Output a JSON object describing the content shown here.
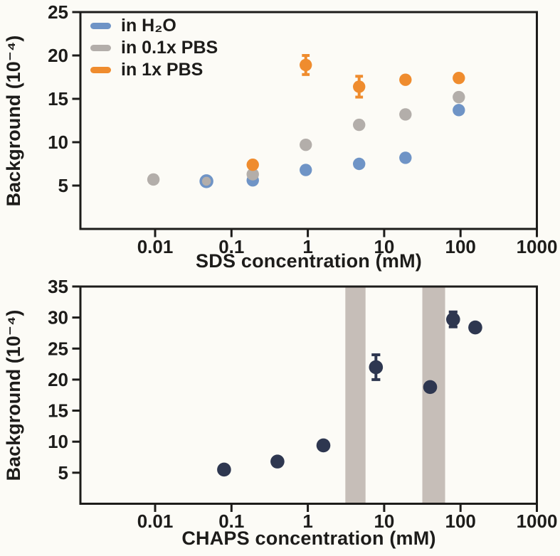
{
  "figure": {
    "background_color": "#fcfbf6",
    "text_color": "#1d1c1a",
    "spine_color": "#1d1c1a"
  },
  "chart_data": [
    {
      "type": "scatter",
      "title": "",
      "xlabel": "SDS concentration (mM)",
      "ylabel": "Background (10⁻⁴)",
      "xscale": "log",
      "xlim": [
        0.001,
        1000
      ],
      "ylim": [
        0,
        25
      ],
      "xticks": [
        0.01,
        0.1,
        1,
        10,
        100,
        1000
      ],
      "xtick_labels": [
        "0.01",
        "0.1",
        "1",
        "10",
        "100",
        "1000"
      ],
      "yticks": [
        5,
        10,
        15,
        20,
        25
      ],
      "grid": false,
      "legend_position": "upper-left",
      "series": [
        {
          "name": "in H₂O",
          "color": "#6f94c6",
          "points": [
            {
              "x": 0.047,
              "y": 5.5,
              "marker_scale": 1.12
            },
            {
              "x": 0.19,
              "y": 5.6
            },
            {
              "x": 0.94,
              "y": 6.8
            },
            {
              "x": 4.7,
              "y": 7.5
            },
            {
              "x": 19,
              "y": 8.2
            },
            {
              "x": 95,
              "y": 13.7
            }
          ]
        },
        {
          "name": "in 0.1x PBS",
          "color": "#b3aeaa",
          "points": [
            {
              "x": 0.0095,
              "y": 5.7
            },
            {
              "x": 0.047,
              "y": 5.5,
              "marker_scale": 0.72
            },
            {
              "x": 0.19,
              "y": 6.3
            },
            {
              "x": 0.94,
              "y": 9.7
            },
            {
              "x": 4.7,
              "y": 12.0
            },
            {
              "x": 19,
              "y": 13.2
            },
            {
              "x": 95,
              "y": 15.2
            }
          ]
        },
        {
          "name": "in 1x PBS",
          "color": "#ef8c2e",
          "points": [
            {
              "x": 0.19,
              "y": 7.4
            },
            {
              "x": 0.94,
              "y": 18.9,
              "err": 1.1
            },
            {
              "x": 4.7,
              "y": 16.4,
              "err": 1.2
            },
            {
              "x": 19,
              "y": 17.2
            },
            {
              "x": 95,
              "y": 17.4
            }
          ]
        }
      ]
    },
    {
      "type": "scatter",
      "title": "",
      "xlabel": "CHAPS concentration (mM)",
      "ylabel": "Background (10⁻⁴)",
      "xscale": "log",
      "xlim": [
        0.001,
        1000
      ],
      "ylim": [
        0,
        35
      ],
      "xticks": [
        0.01,
        0.1,
        1,
        10,
        100,
        1000
      ],
      "xtick_labels": [
        "0.01",
        "0.1",
        "1",
        "10",
        "100",
        "1000"
      ],
      "yticks": [
        5,
        10,
        15,
        20,
        25,
        30,
        35
      ],
      "grid": false,
      "bands": [
        {
          "from": 3.1,
          "to": 5.7,
          "color": "#c6beb8"
        },
        {
          "from": 31.6,
          "to": 62.8,
          "color": "#c6beb8"
        }
      ],
      "series": [
        {
          "name": "CHAPS",
          "color": "#2e3750",
          "points": [
            {
              "x": 0.08,
              "y": 5.5
            },
            {
              "x": 0.4,
              "y": 6.8
            },
            {
              "x": 1.6,
              "y": 9.4
            },
            {
              "x": 7.8,
              "y": 22.0,
              "err": 2.0
            },
            {
              "x": 40,
              "y": 18.8
            },
            {
              "x": 80,
              "y": 29.7,
              "err": 1.2
            },
            {
              "x": 156,
              "y": 28.4
            }
          ]
        }
      ]
    }
  ]
}
